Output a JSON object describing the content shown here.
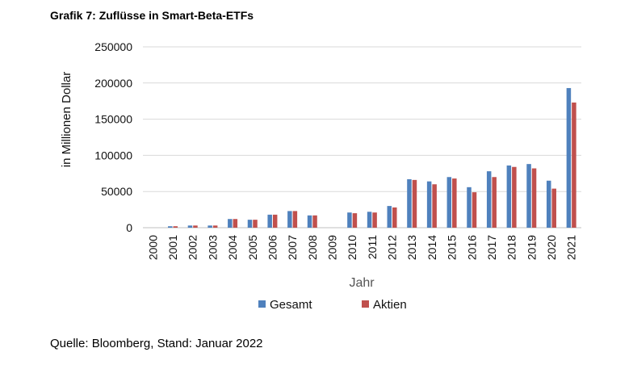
{
  "title": "Grafik 7: Zuflüsse in Smart-Beta-ETFs",
  "source": "Quelle: Bloomberg, Stand: Januar 2022",
  "chart_data": {
    "type": "bar",
    "title": "Grafik 7: Zuflüsse in Smart-Beta-ETFs",
    "xlabel": "Jahr",
    "ylabel": "in Millionen Dollar",
    "ylim": [
      0,
      250000
    ],
    "yticks": [
      "250000",
      "200000",
      "150000",
      "100000",
      "50000",
      "0"
    ],
    "grid": true,
    "legend_position": "bottom",
    "categories": [
      "2000",
      "2001",
      "2002",
      "2003",
      "2004",
      "2005",
      "2006",
      "2007",
      "2008",
      "2009",
      "2010",
      "2011",
      "2012",
      "2013",
      "2014",
      "2015",
      "2016",
      "2017",
      "2018",
      "2019",
      "2020",
      "2021"
    ],
    "series": [
      {
        "name": "Gesamt",
        "color": "#4F81BD",
        "values": [
          0,
          2000,
          3000,
          3000,
          12000,
          11000,
          18000,
          23000,
          17000,
          0,
          21000,
          22000,
          30000,
          67000,
          64000,
          70000,
          56000,
          78000,
          86000,
          88000,
          65000,
          193000
        ]
      },
      {
        "name": "Aktien",
        "color": "#C0504D",
        "values": [
          0,
          2000,
          3000,
          3000,
          12000,
          11000,
          18000,
          23000,
          17000,
          0,
          20000,
          21000,
          28000,
          66000,
          60000,
          68000,
          49000,
          70000,
          84000,
          82000,
          54000,
          173000
        ]
      }
    ]
  }
}
